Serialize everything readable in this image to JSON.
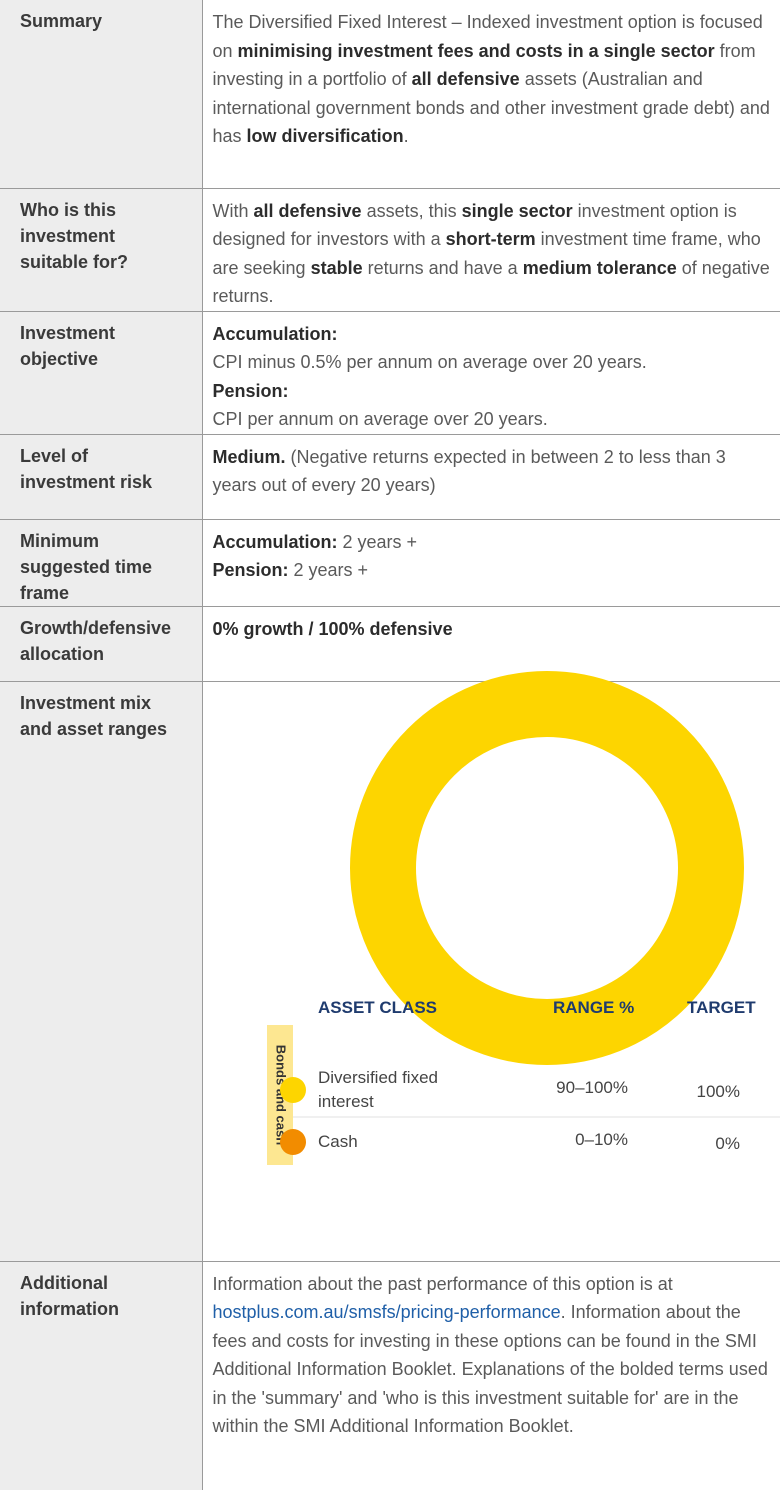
{
  "rows": [
    {
      "label": "Summary",
      "content": [
        [
          {
            "text": "The Diversified Fixed Interest – Indexed investment option is focused on "
          },
          {
            "text": "minimising investment fees and costs in a single sector",
            "bold": true
          },
          {
            "text": " from investing in a portfolio of "
          },
          {
            "text": "all defensive",
            "bold": true
          },
          {
            "text": " assets (Australian and international government bonds and other investment grade debt) and has "
          },
          {
            "text": "low diversification",
            "bold": true
          },
          {
            "text": "."
          }
        ]
      ]
    },
    {
      "label": "Who is this investment suitable for?",
      "content": [
        [
          {
            "text": "With "
          },
          {
            "text": "all defensive",
            "bold": true
          },
          {
            "text": " assets, this "
          },
          {
            "text": "single sector",
            "bold": true
          },
          {
            "text": " investment option is designed for investors with a "
          },
          {
            "text": "short-term",
            "bold": true
          },
          {
            "text": " investment time frame, who are seeking "
          },
          {
            "text": "stable",
            "bold": true
          },
          {
            "text": " returns and have a "
          },
          {
            "text": "medium tolerance",
            "bold": true
          },
          {
            "text": " of negative returns."
          }
        ]
      ]
    },
    {
      "label": "Investment objective",
      "content": [
        [
          {
            "text": "Accumulation:",
            "bold": true
          }
        ],
        [
          {
            "text": "CPI minus 0.5% per annum on average over 20 years."
          }
        ],
        [
          {
            "text": "Pension:",
            "bold": true
          }
        ],
        [
          {
            "text": "CPI per annum on average over 20 years."
          }
        ]
      ]
    },
    {
      "label": "Level of investment risk",
      "content": [
        [
          {
            "text": "Medium.",
            "bold": true
          },
          {
            "text": " (Negative returns expected in between 2 to less than 3 years out of every 20 years)"
          }
        ]
      ]
    },
    {
      "label": "Minimum suggested time frame",
      "content": [
        [
          {
            "text": "Accumulation:",
            "bold": true
          },
          {
            "text": " 2 years +"
          }
        ],
        [
          {
            "text": "Pension:",
            "bold": true
          },
          {
            "text": " 2 years +"
          }
        ]
      ]
    },
    {
      "label": "Growth/defensive allocation",
      "content": [
        [
          {
            "text": "0% growth / 100% defensive",
            "bold": true
          }
        ]
      ]
    },
    {
      "label": "Investment mix and asset ranges"
    },
    {
      "label": "Additional information",
      "content": [
        [
          {
            "text": "Information about the past performance of this option is at "
          },
          {
            "text": "hostplus.com.au/smsfs/pricing-performance",
            "link": true
          },
          {
            "text": ". Information about the fees and costs for investing in these options can be found in the SMI Additional Information Booklet. Explanations of the bolded terms used in the 'summary' and 'who is this investment suitable for' are in the within the SMI Additional Information Booklet."
          }
        ]
      ]
    }
  ],
  "chart_data": {
    "type": "pie",
    "donut": true,
    "columns": [
      "ASSET CLASS",
      "RANGE %",
      "TARGET"
    ],
    "group": "Bonds and cash",
    "group_color": "#fde791",
    "categories": [
      "Diversified fixed interest",
      "Cash"
    ],
    "ranges": [
      "90–100%",
      "0–10%"
    ],
    "values": [
      100,
      0
    ],
    "value_labels": [
      "100%",
      "0%"
    ],
    "colors": [
      "#fdd500",
      "#f28c00"
    ]
  }
}
